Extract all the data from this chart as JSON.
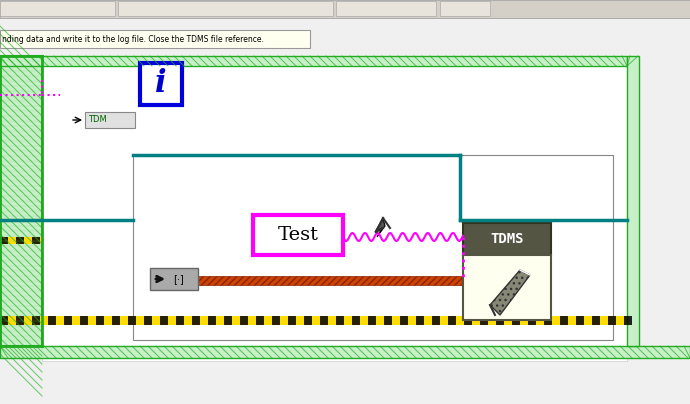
{
  "bg_color": "#f0f0f0",
  "tooltip_text": "nding data and write it to the log file. Close the TDMS file reference.",
  "tooltip_bg": "#fffff0",
  "tooltip_border": "#999999",
  "main_bg": "#ffffff",
  "outer_border_color": "#22aa22",
  "outer_border_hatch": true,
  "inner_white_bg": "#ffffff",
  "teal_line_color": "#008080",
  "magenta_color": "#ff00ff",
  "yellow_stripe_color": "#ffdd00",
  "dark_stripe_color": "#222222",
  "brown_hatch_color": "#8b4513",
  "test_box_border": "#ff00ff",
  "test_text": "Test",
  "tdms_bg_top": "#444444",
  "tdms_bg_bottom": "#fffff0",
  "tdms_text_color": "#ffffff",
  "i_box_border": "#0000dd",
  "i_box_bg": "#ffffff",
  "i_text_color": "#0000cc",
  "arrow_box_bg": "#aaaaaa",
  "arrow_box_border": "#555555"
}
